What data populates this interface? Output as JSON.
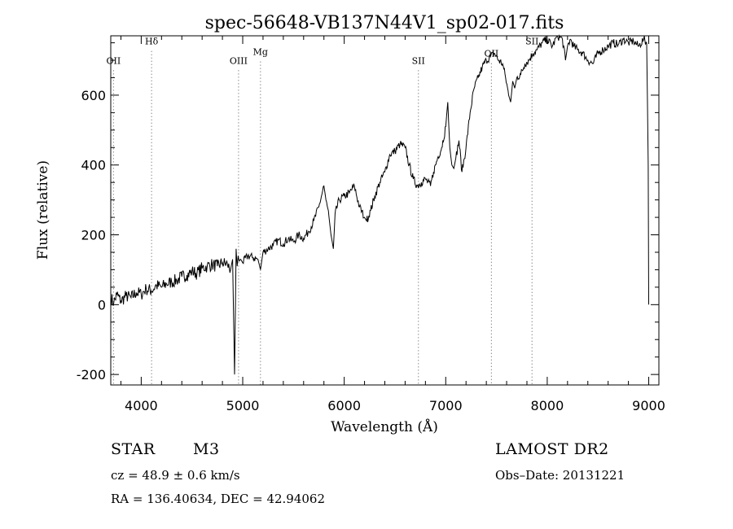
{
  "chart_data": {
    "type": "line",
    "title": "spec-56648-VB137N44V1_sp02-017.fits",
    "xlabel": "Wavelength (Å)",
    "ylabel": "Flux (relative)",
    "xlim": [
      3700,
      9100
    ],
    "ylim": [
      -230,
      770
    ],
    "x_ticks": [
      4000,
      5000,
      6000,
      7000,
      8000,
      9000
    ],
    "y_ticks": [
      -200,
      0,
      200,
      400,
      600
    ],
    "grid": false,
    "line_color": "#000000",
    "marker_color": "#555555",
    "lines": [
      {
        "label": "OII",
        "x": 3727,
        "label_y": 690
      },
      {
        "label": "Hδ",
        "x": 4102,
        "label_y": 745
      },
      {
        "label": "OIII",
        "x": 4959,
        "label_y": 690
      },
      {
        "label": "Mg",
        "x": 5175,
        "label_y": 715
      },
      {
        "label": "SII",
        "x": 6731,
        "label_y": 690
      },
      {
        "label": "OII",
        "x": 7450,
        "label_y": 710
      },
      {
        "label": "SII",
        "x": 7850,
        "label_y": 745
      }
    ],
    "series": [
      {
        "x": [
          3700,
          3730,
          3760,
          3800,
          3850,
          3900,
          3950,
          4000,
          4050,
          4100,
          4150,
          4200,
          4250,
          4300,
          4350,
          4400,
          4450,
          4500,
          4550,
          4600,
          4650,
          4700,
          4750,
          4800,
          4850,
          4880,
          4900,
          4920,
          4935,
          4945,
          4955,
          4965,
          4980,
          5000,
          5050,
          5100,
          5150,
          5175,
          5200,
          5250,
          5300,
          5350,
          5400,
          5450,
          5500,
          5550,
          5600,
          5650,
          5700,
          5750,
          5800,
          5820,
          5850,
          5870,
          5893,
          5910,
          5950,
          6000,
          6050,
          6100,
          6150,
          6200,
          6220,
          6260,
          6300,
          6350,
          6400,
          6450,
          6500,
          6550,
          6600,
          6640,
          6680,
          6720,
          6760,
          6800,
          6850,
          6880,
          6920,
          6960,
          7000,
          7020,
          7040,
          7060,
          7080,
          7100,
          7130,
          7160,
          7200,
          7240,
          7280,
          7320,
          7360,
          7400,
          7440,
          7480,
          7520,
          7560,
          7590,
          7620,
          7640,
          7660,
          7680,
          7700,
          7740,
          7780,
          7820,
          7860,
          7900,
          7950,
          8000,
          8050,
          8100,
          8150,
          8180,
          8200,
          8230,
          8260,
          8300,
          8350,
          8400,
          8450,
          8500,
          8550,
          8600,
          8650,
          8700,
          8750,
          8800,
          8850,
          8900,
          8950,
          8980,
          8995,
          9000
        ],
        "y": [
          20,
          5,
          30,
          10,
          25,
          20,
          35,
          30,
          45,
          40,
          55,
          50,
          60,
          65,
          70,
          80,
          85,
          95,
          90,
          105,
          110,
          115,
          110,
          120,
          115,
          100,
          130,
          -200,
          160,
          110,
          140,
          125,
          130,
          120,
          140,
          135,
          130,
          100,
          150,
          160,
          170,
          185,
          175,
          190,
          180,
          200,
          190,
          210,
          240,
          280,
          340,
          300,
          250,
          200,
          160,
          260,
          300,
          310,
          320,
          340,
          280,
          250,
          240,
          270,
          310,
          350,
          380,
          430,
          440,
          460,
          450,
          400,
          360,
          340,
          350,
          360,
          340,
          380,
          420,
          450,
          510,
          580,
          450,
          400,
          390,
          420,
          470,
          380,
          450,
          550,
          620,
          650,
          680,
          700,
          710,
          720,
          700,
          690,
          650,
          600,
          580,
          640,
          620,
          650,
          660,
          690,
          700,
          720,
          730,
          750,
          760,
          740,
          770,
          760,
          700,
          740,
          760,
          740,
          730,
          720,
          700,
          690,
          720,
          730,
          740,
          750,
          745,
          760,
          750,
          755,
          740,
          760,
          750,
          400,
          0
        ]
      }
    ]
  },
  "footer": {
    "object_type": "STAR",
    "subclass": "M3",
    "survey": "LAMOST DR2",
    "redshift": "cz = 48.9 ± 0.6 km/s",
    "obs_date": "Obs–Date: 20131221",
    "coords": "RA = 136.40634, DEC =  42.94062"
  }
}
